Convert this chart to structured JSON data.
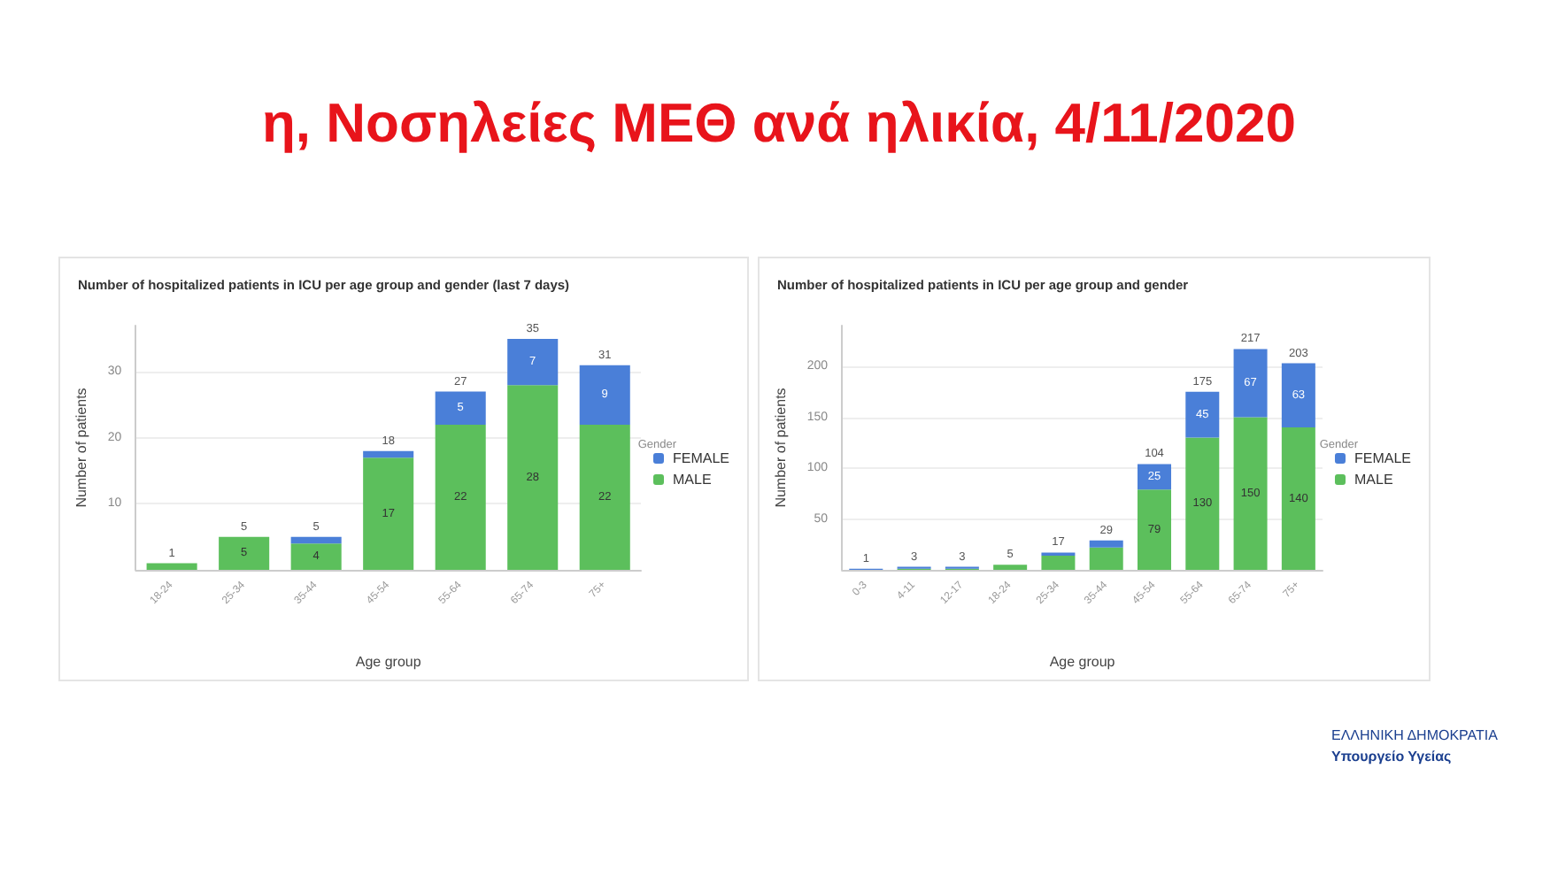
{
  "chart_data": [
    {
      "type": "bar",
      "title": "Number of hospitalized patients in ICU per age group and gender (last 7 days)",
      "xlabel": "Age group",
      "ylabel": "Number of patients",
      "legend_title": "Gender",
      "annotations": [
        "η, Νοσηλείες ΜΕΘ ανά ηλικία, 4/11/2020"
      ],
      "categories": [
        "18-24",
        "25-34",
        "35-44",
        "45-54",
        "55-64",
        "65-74",
        "75+"
      ],
      "series": [
        {
          "name": "MALE",
          "color": "#5cbf5c",
          "values": [
            1,
            5,
            4,
            17,
            22,
            28,
            22
          ],
          "value_labels": [
            null,
            "5",
            "4",
            "17",
            "22",
            "28",
            "22"
          ]
        },
        {
          "name": "FEMALE",
          "color": "#4a7fd8",
          "values": [
            0,
            0,
            1,
            1,
            5,
            7,
            9
          ],
          "value_labels": [
            null,
            null,
            null,
            null,
            "5",
            "7",
            "9"
          ]
        }
      ],
      "totals": [
        "1",
        "5",
        "5",
        "18",
        "27",
        "35",
        "31"
      ],
      "stacked": true,
      "ylim": [
        0,
        37
      ],
      "yticks": [
        10,
        20,
        30
      ],
      "grid": "y",
      "legend": "right"
    },
    {
      "type": "bar",
      "title": "Number of hospitalized patients in ICU per age group and gender",
      "xlabel": "Age group",
      "ylabel": "Number of patients",
      "legend_title": "Gender",
      "annotations": [
        "ΕΛΛΗΝΙΚΗ ΔΗΜΟΚΡΑΤΙΑ",
        "Υπουργείο Υγείας"
      ],
      "categories": [
        "0-3",
        "4-11",
        "12-17",
        "18-24",
        "25-34",
        "35-44",
        "45-54",
        "55-64",
        "65-74",
        "75+"
      ],
      "series": [
        {
          "name": "MALE",
          "color": "#5cbf5c",
          "values": [
            0,
            1,
            1,
            5,
            14,
            22,
            79,
            130,
            150,
            140
          ],
          "value_labels": [
            null,
            null,
            null,
            null,
            null,
            null,
            "79",
            "130",
            "150",
            "140"
          ]
        },
        {
          "name": "FEMALE",
          "color": "#4a7fd8",
          "values": [
            1,
            2,
            2,
            0,
            3,
            7,
            25,
            45,
            67,
            63
          ],
          "value_labels": [
            null,
            null,
            null,
            null,
            null,
            null,
            "25",
            "45",
            "67",
            "63"
          ]
        }
      ],
      "totals": [
        "1",
        "3",
        "3",
        "5",
        "17",
        "29",
        "104",
        "175",
        "217",
        "203"
      ],
      "stacked": true,
      "ylim": [
        0,
        240
      ],
      "yticks": [
        50,
        100,
        150,
        200
      ],
      "grid": "y",
      "legend": "right"
    }
  ]
}
